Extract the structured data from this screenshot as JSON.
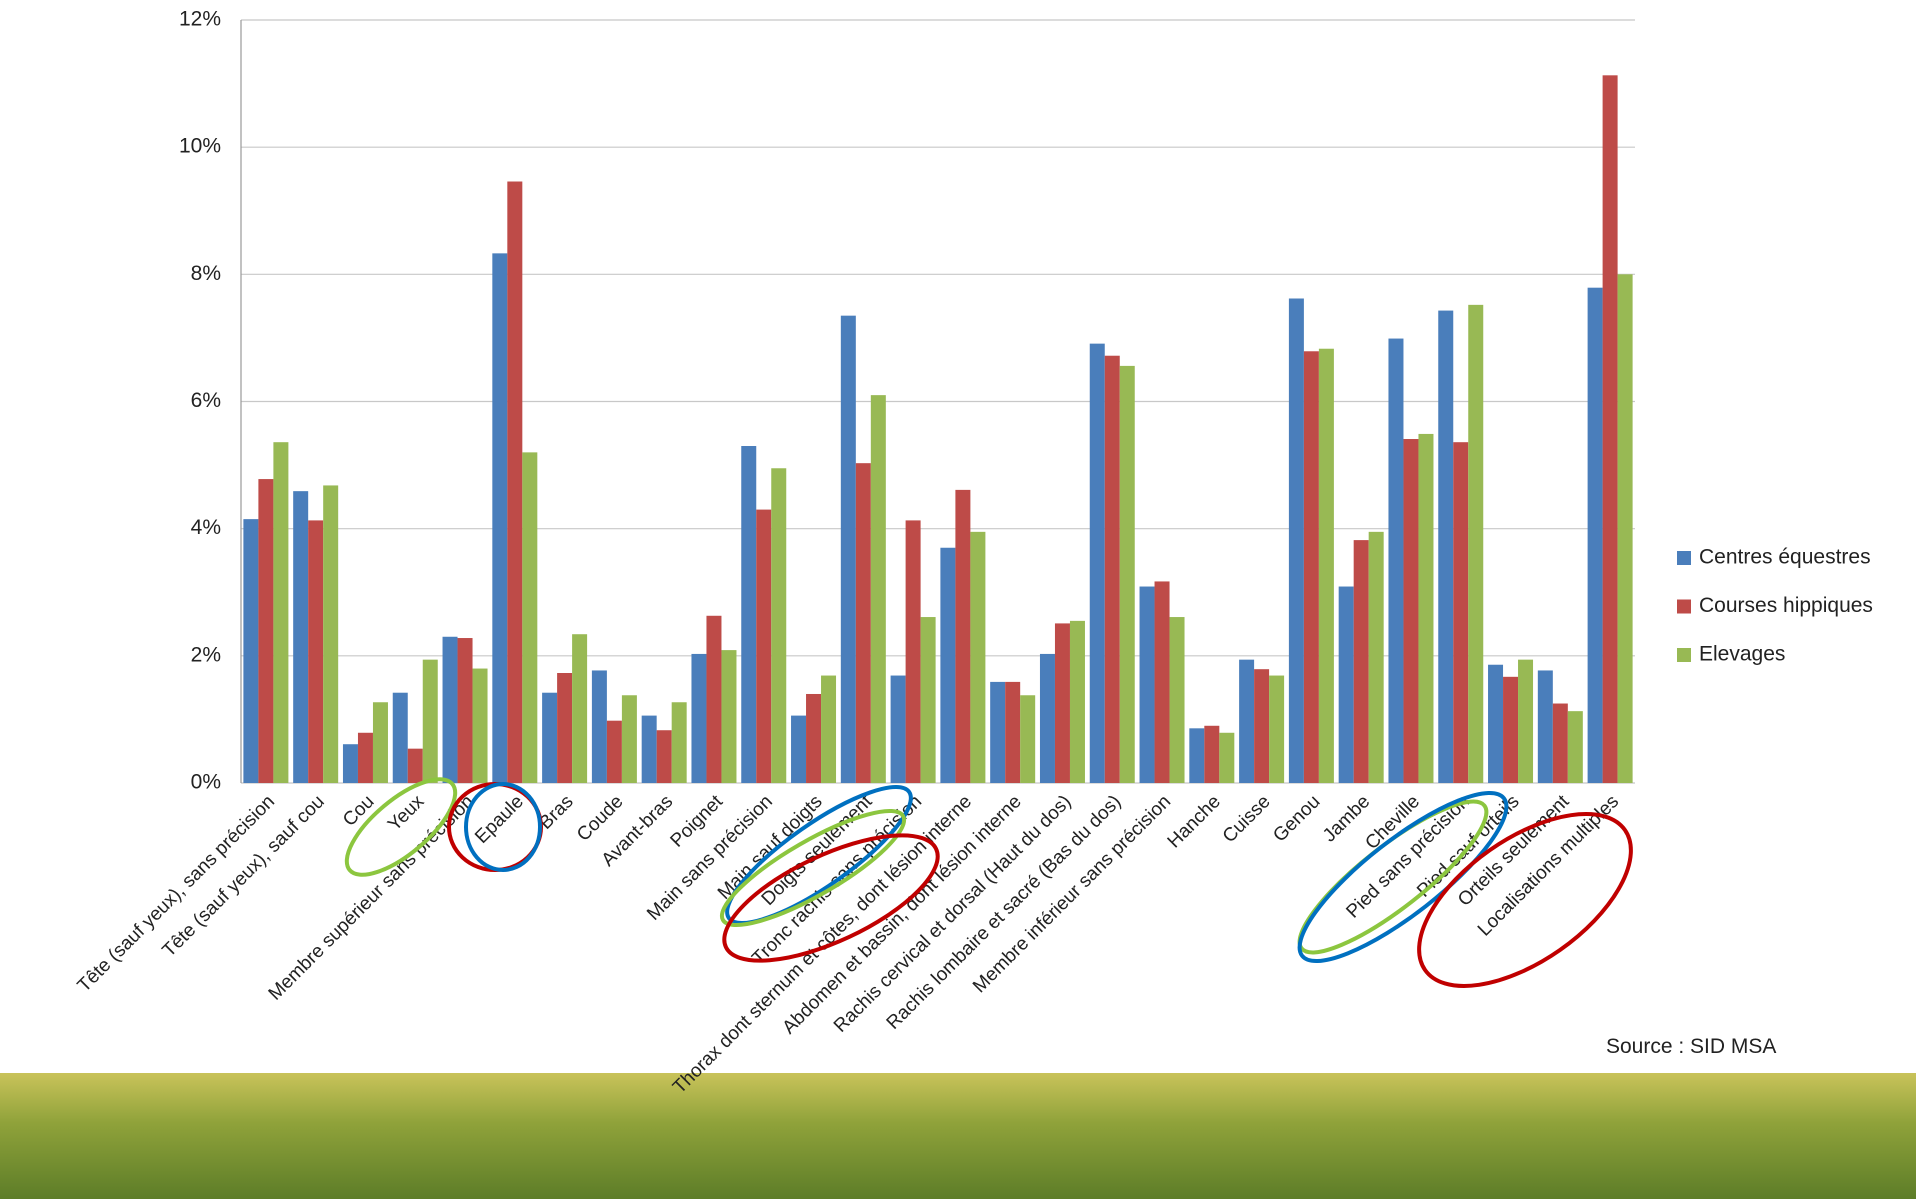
{
  "chart_data": {
    "type": "bar",
    "categories": [
      "Tête (sauf yeux), sans précision",
      "Tête (sauf yeux), sauf cou",
      "Cou",
      "Yeux",
      "Membre supérieur sans précision",
      "Epaule",
      "Bras",
      "Coude",
      "Avant-bras",
      "Poignet",
      "Main sans précision",
      "Main sauf doigts",
      "Doigts seulement",
      "Tronc rachis sans précision",
      "Thorax dont sternum et côtes, dont lésion interne",
      "Abdomen et bassin, dont lésion interne",
      "Rachis cervical et dorsal (Haut du dos)",
      "Rachis lombaire et sacré (Bas du dos)",
      "Membre inférieur sans précision",
      "Hanche",
      "Cuisse",
      "Genou",
      "Jambe",
      "Cheville",
      "Pied sans précision",
      "Pied sauf orteils",
      "Orteils seulement",
      "Localisations multiples"
    ],
    "series": [
      {
        "name": "Centres équestres",
        "color": "#4a7ebb",
        "values": [
          4.15,
          4.59,
          0.61,
          1.42,
          2.3,
          8.33,
          1.42,
          1.77,
          1.06,
          2.03,
          5.3,
          1.06,
          7.35,
          1.69,
          3.7,
          1.59,
          2.03,
          6.91,
          3.09,
          0.86,
          1.94,
          7.62,
          3.09,
          6.99,
          7.43,
          1.86,
          1.77,
          7.79
        ]
      },
      {
        "name": "Courses hippiques",
        "color": "#be4b48",
        "values": [
          4.78,
          4.13,
          0.79,
          0.54,
          2.28,
          9.46,
          1.73,
          0.98,
          0.83,
          2.63,
          4.3,
          1.4,
          5.03,
          4.13,
          4.61,
          1.59,
          2.51,
          6.72,
          3.17,
          0.9,
          1.79,
          6.79,
          3.82,
          5.41,
          5.36,
          1.67,
          1.25,
          11.13
        ]
      },
      {
        "name": "Elevages",
        "color": "#98b954",
        "values": [
          5.36,
          4.68,
          1.27,
          1.94,
          1.8,
          5.2,
          2.34,
          1.38,
          1.27,
          2.09,
          4.95,
          1.69,
          6.1,
          2.61,
          3.95,
          1.38,
          2.55,
          6.56,
          2.61,
          0.79,
          1.69,
          6.83,
          3.95,
          5.49,
          7.52,
          1.94,
          1.13,
          8.0
        ]
      }
    ],
    "ylim": [
      0,
      12
    ],
    "yticks": [
      {
        "value": 0,
        "label": "0%"
      },
      {
        "value": 2,
        "label": "2%"
      },
      {
        "value": 4,
        "label": "4%"
      },
      {
        "value": 6,
        "label": "6%"
      },
      {
        "value": 8,
        "label": "8%"
      },
      {
        "value": 10,
        "label": "10%"
      },
      {
        "value": 12,
        "label": "12%"
      }
    ],
    "grid": true,
    "legend": "right",
    "source": "Source : SID MSA"
  }
}
